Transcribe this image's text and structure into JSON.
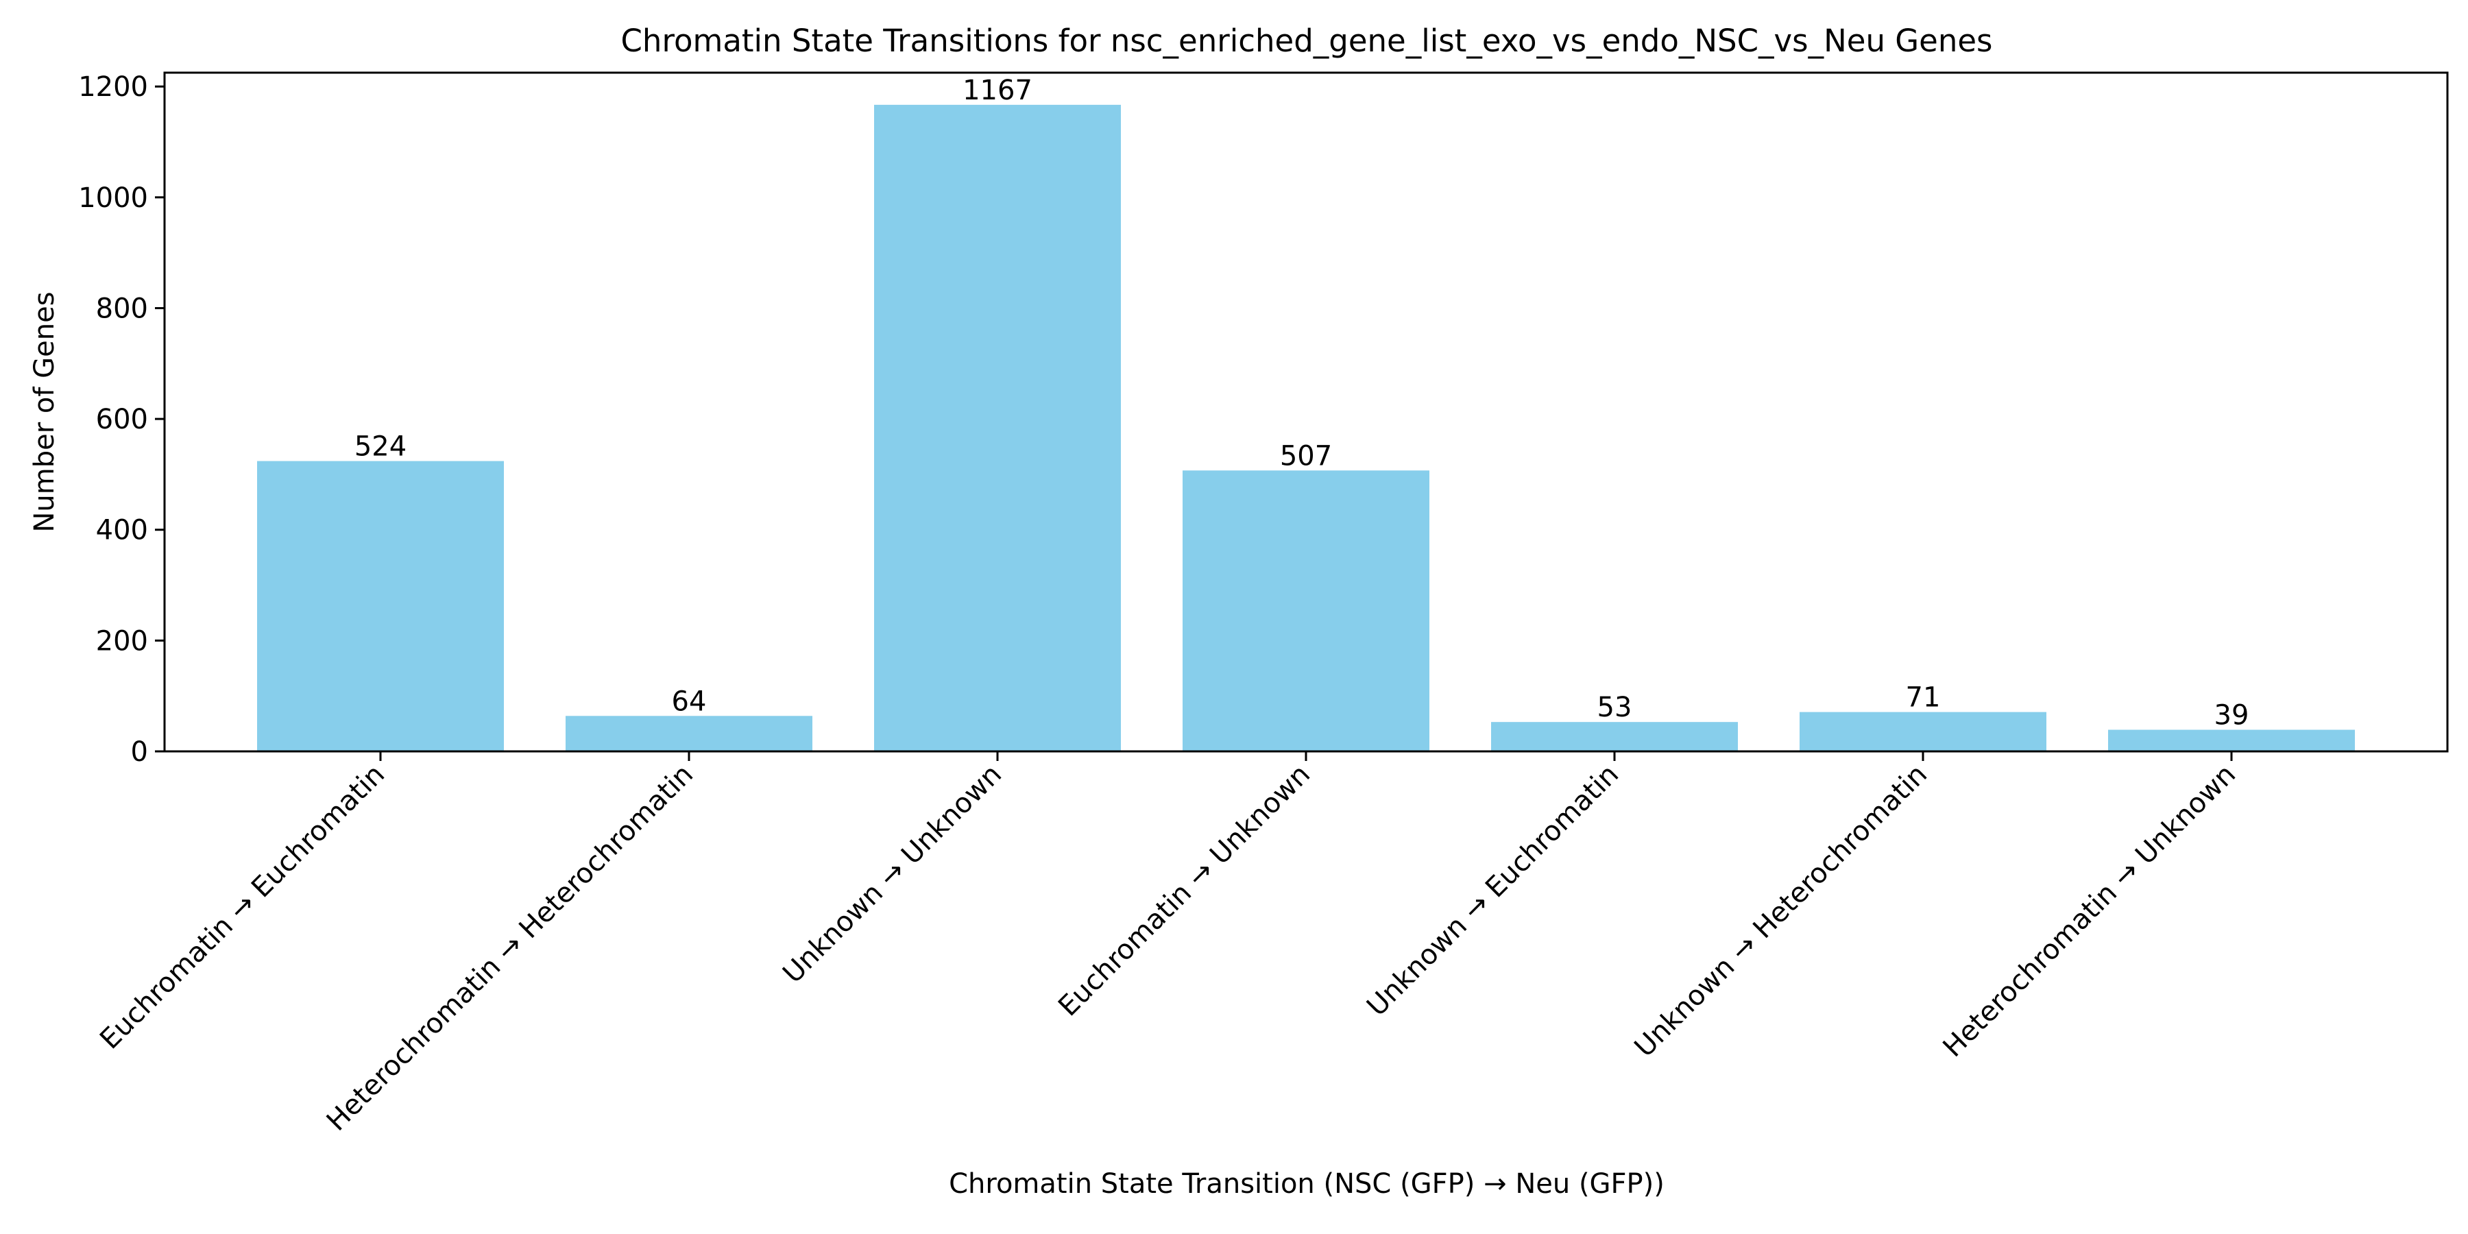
{
  "chart_data": {
    "type": "bar",
    "title": "Chromatin State Transitions for nsc_enriched_gene_list_exo_vs_endo_NSC_vs_Neu Genes",
    "xlabel": "Chromatin State Transition (NSC (GFP) → Neu (GFP))",
    "ylabel": "Number of Genes",
    "categories": [
      "Euchromatin → Euchromatin",
      "Heterochromatin → Heterochromatin",
      "Unknown → Unknown",
      "Euchromatin → Unknown",
      "Unknown → Euchromatin",
      "Unknown → Heterochromatin",
      "Heterochromatin → Unknown"
    ],
    "values": [
      524,
      64,
      1167,
      507,
      53,
      71,
      39
    ],
    "ylim": [
      0,
      1225
    ],
    "yticks": [
      0,
      200,
      400,
      600,
      800,
      1000,
      1200
    ],
    "bar_color": "#87ceeb",
    "grid": false,
    "legend": "none"
  }
}
